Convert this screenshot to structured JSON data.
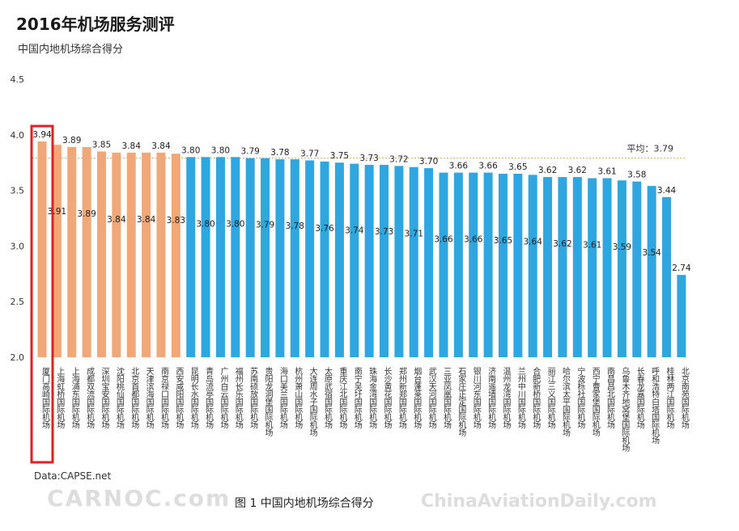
{
  "title": "2016年机场服务测评",
  "subtitle": "中国内地机场综合得分",
  "source": "Data:CAPSE.net",
  "caption": "图 1  中国内地机场综合得分",
  "watermark_left": "CARNOC.com",
  "watermark_right": "ChinaAviationDaily.com",
  "colors": {
    "highlight": "#f0a878",
    "normal": "#2fa6df",
    "highlight_box": "#e02020",
    "average_line": "#c9b46a"
  },
  "chart_data": {
    "type": "bar",
    "ylim": [
      2.0,
      4.5
    ],
    "yticks": [
      "2.0",
      "2.5",
      "3.0",
      "3.5",
      "4.0",
      "4.5"
    ],
    "average": {
      "label": "平均：3.79",
      "value": 3.79
    },
    "highlight_count": 10,
    "boxed_index": 0,
    "categories": [
      "厦门高崎国际机场",
      "上海虹桥国际机场",
      "上海浦东国际机场",
      "成都双流国际机场",
      "深圳宝安国际机场",
      "沈阳桃仙国际机场",
      "北京首都国际机场",
      "天津滨海国际机场",
      "南京禄口国际机场",
      "西安咸阳国际机场",
      "昆明长水国际机场",
      "青岛流亭国际机场",
      "广州白云国际机场",
      "福州长乐国际机场",
      "苏南硕放国际机场",
      "贵阳龙洞堡国际机场",
      "海口美兰国际机场",
      "杭州萧山国际机场",
      "大连周水子国际机场",
      "太原武宿国际机场",
      "重庆江北国际机场",
      "南宁吴圩国际机场",
      "珠海金湾国际机场",
      "长沙黄花国际机场",
      "郑州新郑国际机场",
      "烟台蓬莱国际机场",
      "武汉天河国际机场",
      "三亚凤凰国际机场",
      "石家庄正定国际机场",
      "银川河东国际机场",
      "济南遥墙国际机场",
      "温州龙湾国际机场",
      "兰州中川国际机场",
      "合肥新桥国际机场",
      "丽江三义国际机场",
      "哈尔滨太平国际机场",
      "宁波栎社国际机场",
      "西宁曹家堡国际机场",
      "南昌昌北国际机场",
      "乌鲁木齐地窝堡国际机场",
      "长春龙嘉国际机场",
      "呼和浩特白塔国际机场",
      "桂林两江国际机场",
      "北京南苑国际机场"
    ],
    "values": [
      3.94,
      3.91,
      3.89,
      3.89,
      3.85,
      3.84,
      3.84,
      3.84,
      3.84,
      3.83,
      3.8,
      3.8,
      3.8,
      3.8,
      3.79,
      3.79,
      3.78,
      3.78,
      3.77,
      3.76,
      3.75,
      3.74,
      3.73,
      3.73,
      3.72,
      3.71,
      3.7,
      3.66,
      3.66,
      3.66,
      3.66,
      3.65,
      3.65,
      3.64,
      3.62,
      3.62,
      3.62,
      3.61,
      3.61,
      3.59,
      3.58,
      3.54,
      3.44,
      2.74
    ],
    "top_labels": [
      "3.94",
      "3.89",
      "3.85",
      "3.84",
      "3.84",
      "3.80",
      "3.80",
      "3.79",
      "3.78",
      "3.77",
      "3.75",
      "3.73",
      "3.72",
      "3.70",
      "3.66",
      "3.66",
      "3.65",
      "3.62",
      "3.62",
      "3.61",
      "3.58",
      "3.44"
    ],
    "top_label_indices": [
      0,
      2,
      4,
      6,
      8,
      10,
      12,
      14,
      16,
      18,
      20,
      22,
      24,
      26,
      28,
      30,
      32,
      34,
      36,
      38,
      40,
      42
    ],
    "inner_labels": [
      "3.91",
      "3.89",
      "3.84",
      "3.84",
      "3.83",
      "3.80",
      "3.80",
      "3.79",
      "3.78",
      "3.76",
      "3.74",
      "3.73",
      "3.71",
      "3.66",
      "3.66",
      "3.65",
      "3.64",
      "3.62",
      "3.61",
      "3.59",
      "3.54",
      "2.74"
    ],
    "inner_label_indices": [
      1,
      3,
      5,
      7,
      9,
      11,
      13,
      15,
      17,
      19,
      21,
      23,
      25,
      27,
      29,
      31,
      33,
      35,
      37,
      39,
      41,
      43
    ]
  }
}
